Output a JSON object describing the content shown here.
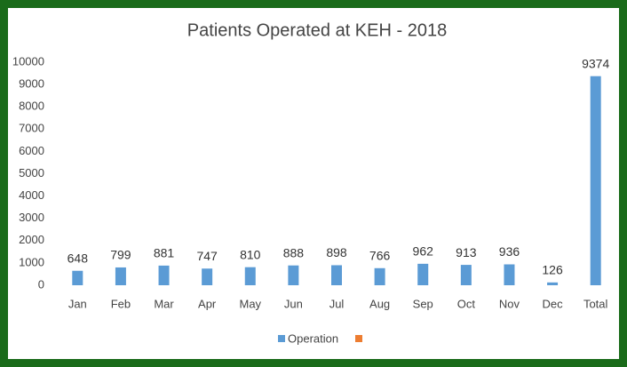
{
  "chart_data": {
    "type": "bar",
    "title": "Patients Operated at KEH - 2018",
    "categories": [
      "Jan",
      "Feb",
      "Mar",
      "Apr",
      "May",
      "Jun",
      "Jul",
      "Aug",
      "Sep",
      "Oct",
      "Nov",
      "Dec",
      "Total"
    ],
    "series": [
      {
        "name": "Operation",
        "color": "#5b9bd5",
        "values": [
          648,
          799,
          881,
          747,
          810,
          888,
          898,
          766,
          962,
          913,
          936,
          126,
          9374
        ]
      }
    ],
    "ylim": [
      0,
      10000
    ],
    "yticks": [
      0,
      1000,
      2000,
      3000,
      4000,
      5000,
      6000,
      7000,
      8000,
      9000,
      10000
    ],
    "grid": false,
    "legend": "bottom"
  }
}
